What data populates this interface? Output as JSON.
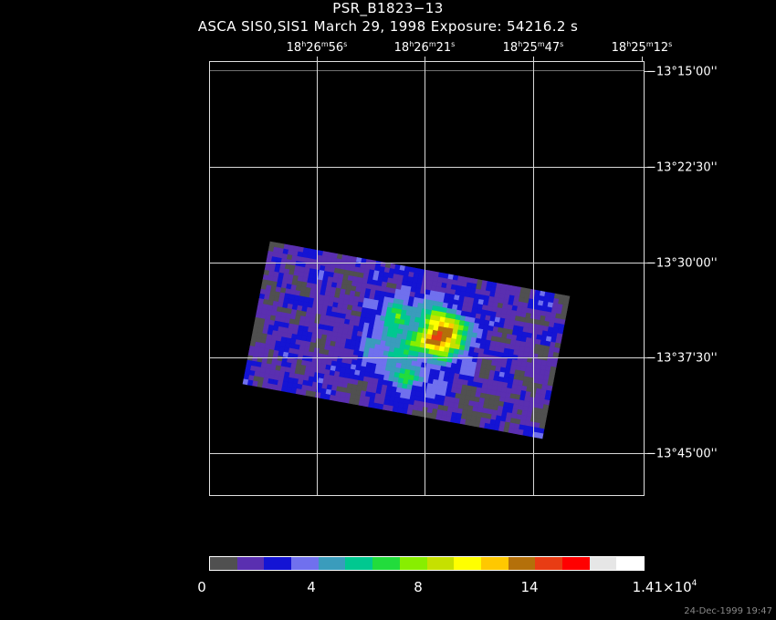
{
  "title": "PSR_B1823−13",
  "subtitle": "ASCA SIS0,SIS1 March 29, 1998 Exposure: 54216.2 s",
  "ra_labels": [
    {
      "h": "18",
      "m": "26",
      "s": "56"
    },
    {
      "h": "18",
      "m": "26",
      "s": "21"
    },
    {
      "h": "18",
      "m": "25",
      "s": "47"
    },
    {
      "h": "18",
      "m": "25",
      "s": "12"
    }
  ],
  "dec_labels": [
    "−13°15'00''",
    "−13°22'30''",
    "−13°30'00''",
    "−13°37'30''",
    "−13°45'00''"
  ],
  "colorbar": {
    "colors": [
      "#505050",
      "#5a2fb0",
      "#1414d4",
      "#7070ee",
      "#3a9cbc",
      "#00c890",
      "#22dc3c",
      "#88ee00",
      "#c6e000",
      "#ffff00",
      "#ffc800",
      "#b4700a",
      "#e83c14",
      "#ff0000",
      "#e6e6e6",
      "#ffffff"
    ],
    "labels": [
      "0",
      "4",
      "8",
      "14"
    ],
    "max_label": "1.41×10",
    "max_exp": "4"
  },
  "timestamp": "24-Dec-1999 19:47"
}
